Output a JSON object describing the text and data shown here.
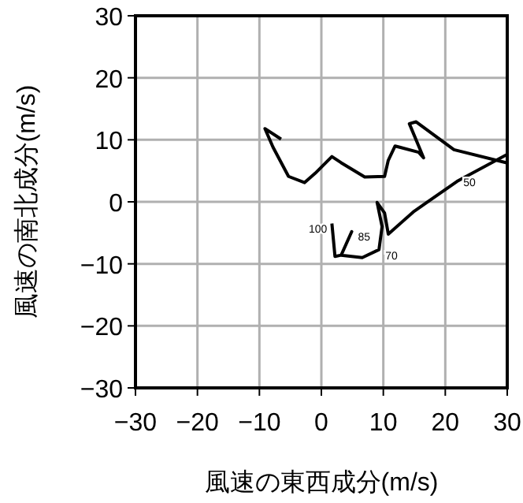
{
  "chart_data": {
    "type": "line",
    "xlabel": "風速の東西成分(m/s)",
    "ylabel": "風速の南北成分(m/s)",
    "xlim": [
      -30,
      30
    ],
    "ylim": [
      -30,
      30
    ],
    "xticks": [
      -30,
      -20,
      -10,
      0,
      10,
      20,
      30
    ],
    "yticks": [
      -30,
      -20,
      -10,
      0,
      10,
      20,
      30
    ],
    "grid": true,
    "series": [
      {
        "color": "#000000",
        "x": [
          1.7,
          2.2,
          3.2,
          4.9,
          3.2,
          6.6,
          9.3,
          9.8,
          9.0,
          10.2,
          10.8,
          15.0,
          21.9,
          29.9,
          null,
          29.9,
          21.4,
          15.3,
          14.2,
          16.5,
          15.7,
          11.9,
          10.8,
          10.2,
          7.0,
          3.2,
          1.7,
          -1.0,
          -2.7,
          -5.3,
          -7.8,
          -9.1,
          -6.5
        ],
        "values": [
          -3.5,
          -8.8,
          -8.6,
          -4.8,
          -8.6,
          -9.0,
          -7.7,
          -4.0,
          -0.1,
          -1.8,
          -5.2,
          -1.5,
          3.3,
          7.6,
          null,
          6.3,
          8.4,
          12.9,
          12.6,
          7.1,
          8.0,
          9.0,
          6.7,
          4.1,
          4.0,
          6.3,
          7.3,
          4.6,
          3.1,
          4.1,
          8.8,
          11.8,
          10.1
        ]
      }
    ],
    "annotations": [
      {
        "text": "100",
        "x": 1.7,
        "y": -4.2
      },
      {
        "text": "85",
        "x": 4.9,
        "y": -5.5
      },
      {
        "text": "70",
        "x": 9.3,
        "y": -8.5
      },
      {
        "text": "50",
        "x": 21.9,
        "y": 3.3
      }
    ]
  }
}
